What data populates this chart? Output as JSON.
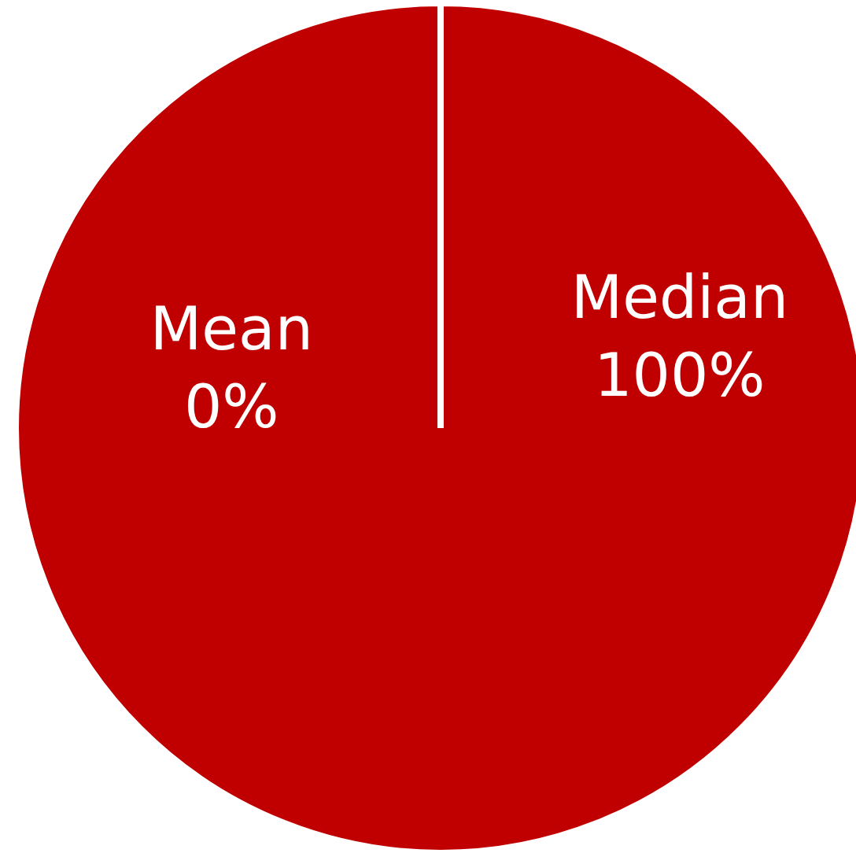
{
  "chart_data": {
    "type": "pie",
    "categories": [
      "Mean",
      "Median"
    ],
    "values": [
      0,
      100
    ],
    "colors": [
      "#c00000",
      "#c00000"
    ],
    "value_labels": [
      "0%",
      "100%"
    ]
  }
}
